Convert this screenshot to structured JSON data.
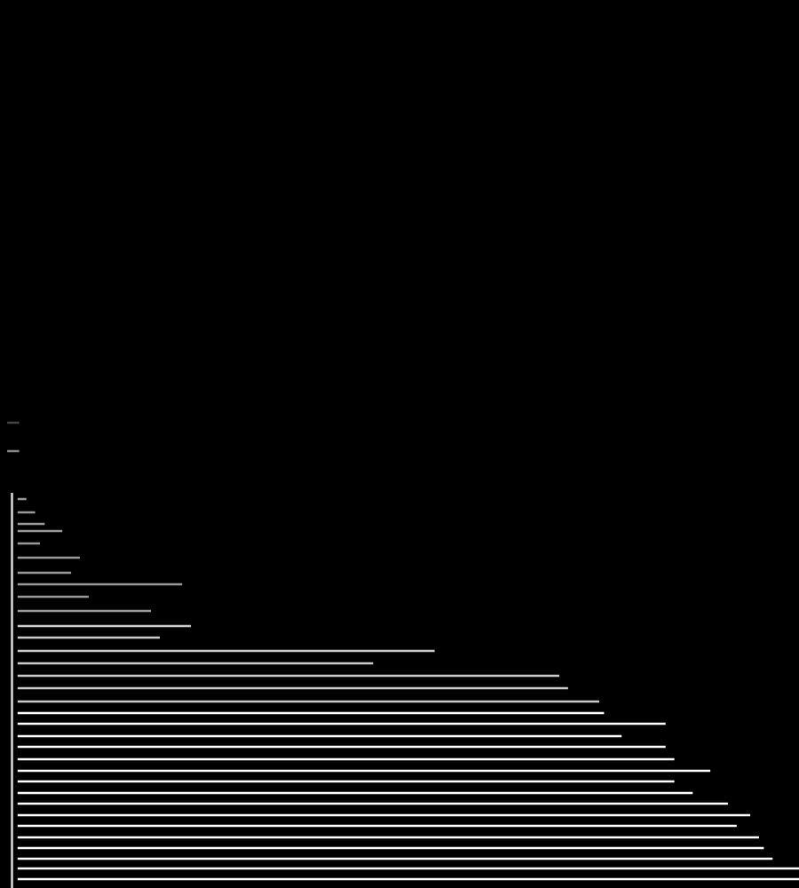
{
  "chart_data": {
    "type": "line",
    "xlim": [
      0,
      100
    ],
    "ylim": [
      0,
      100
    ],
    "grid": false,
    "tick_labels": false,
    "series": [
      {
        "color": "#dddddd",
        "x": [
          1.5,
          1.5
        ],
        "values": [
          0,
          44.5
        ]
      },
      {
        "color": "#888888",
        "x": [
          0.9,
          2.4
        ],
        "values": [
          49.2,
          49.2
        ]
      },
      {
        "color": "#444444",
        "x": [
          0.9,
          2.4
        ],
        "values": [
          52.4,
          52.4
        ]
      },
      {
        "color": "#999999",
        "x": [
          2.2,
          3.3
        ],
        "values": [
          43.8,
          43.8
        ]
      },
      {
        "color": "#999999",
        "x": [
          2.2,
          4.4
        ],
        "values": [
          42.3,
          42.3
        ]
      },
      {
        "color": "#999999",
        "x": [
          2.2,
          5.6
        ],
        "values": [
          41.0,
          41.0
        ]
      },
      {
        "color": "#999999",
        "x": [
          2.2,
          7.8
        ],
        "values": [
          40.2,
          40.2
        ]
      },
      {
        "color": "#999999",
        "x": [
          2.2,
          5.0
        ],
        "values": [
          38.8,
          38.8
        ]
      },
      {
        "color": "#999999",
        "x": [
          2.2,
          10.0
        ],
        "values": [
          37.2,
          37.2
        ]
      },
      {
        "color": "#999999",
        "x": [
          2.2,
          8.9
        ],
        "values": [
          35.5,
          35.5
        ]
      },
      {
        "color": "#999999",
        "x": [
          2.2,
          22.8
        ],
        "values": [
          34.2,
          34.2
        ]
      },
      {
        "color": "#999999",
        "x": [
          2.2,
          11.1
        ],
        "values": [
          32.8,
          32.8
        ]
      },
      {
        "color": "#999999",
        "x": [
          2.2,
          18.9
        ],
        "values": [
          31.2,
          31.2
        ]
      },
      {
        "color": "#cccccc",
        "x": [
          2.2,
          23.9
        ],
        "values": [
          29.5,
          29.5
        ]
      },
      {
        "color": "#cccccc",
        "x": [
          2.2,
          20.0
        ],
        "values": [
          28.2,
          28.2
        ]
      },
      {
        "color": "#cccccc",
        "x": [
          2.2,
          54.4
        ],
        "values": [
          26.7,
          26.7
        ]
      },
      {
        "color": "#cccccc",
        "x": [
          2.2,
          46.7
        ],
        "values": [
          25.3,
          25.3
        ]
      },
      {
        "color": "#cccccc",
        "x": [
          2.2,
          70.0
        ],
        "values": [
          23.9,
          23.9
        ]
      },
      {
        "color": "#cccccc",
        "x": [
          2.2,
          71.1
        ],
        "values": [
          22.5,
          22.5
        ]
      },
      {
        "color": "#cccccc",
        "x": [
          2.2,
          75.0
        ],
        "values": [
          21.0,
          21.0
        ]
      },
      {
        "color": "#ffffff",
        "x": [
          2.2,
          75.6
        ],
        "values": [
          19.7,
          19.7
        ]
      },
      {
        "color": "#ffffff",
        "x": [
          2.2,
          83.3
        ],
        "values": [
          18.5,
          18.5
        ]
      },
      {
        "color": "#ffffff",
        "x": [
          2.2,
          77.8
        ],
        "values": [
          17.1,
          17.1
        ]
      },
      {
        "color": "#ffffff",
        "x": [
          2.2,
          83.3
        ],
        "values": [
          15.9,
          15.9
        ]
      },
      {
        "color": "#ffffff",
        "x": [
          2.2,
          84.4
        ],
        "values": [
          14.5,
          14.5
        ]
      },
      {
        "color": "#ffffff",
        "x": [
          2.2,
          88.9
        ],
        "values": [
          13.2,
          13.2
        ]
      },
      {
        "color": "#ffffff",
        "x": [
          2.2,
          84.4
        ],
        "values": [
          12.0,
          12.0
        ]
      },
      {
        "color": "#ffffff",
        "x": [
          2.2,
          86.7
        ],
        "values": [
          10.7,
          10.7
        ]
      },
      {
        "color": "#ffffff",
        "x": [
          2.2,
          91.1
        ],
        "values": [
          9.5,
          9.5
        ]
      },
      {
        "color": "#ffffff",
        "x": [
          2.2,
          93.9
        ],
        "values": [
          8.2,
          8.2
        ]
      },
      {
        "color": "#ffffff",
        "x": [
          2.2,
          92.2
        ],
        "values": [
          7.0,
          7.0
        ]
      },
      {
        "color": "#ffffff",
        "x": [
          2.2,
          95.0
        ],
        "values": [
          5.7,
          5.7
        ]
      },
      {
        "color": "#ffffff",
        "x": [
          2.2,
          95.6
        ],
        "values": [
          4.5,
          4.5
        ]
      },
      {
        "color": "#ffffff",
        "x": [
          2.2,
          96.7
        ],
        "values": [
          3.3,
          3.3
        ]
      },
      {
        "color": "#ffffff",
        "x": [
          2.2,
          100
        ],
        "values": [
          2.2,
          2.2
        ]
      },
      {
        "color": "#ffffff",
        "x": [
          2.2,
          100
        ],
        "values": [
          1.0,
          1.0
        ]
      }
    ]
  }
}
